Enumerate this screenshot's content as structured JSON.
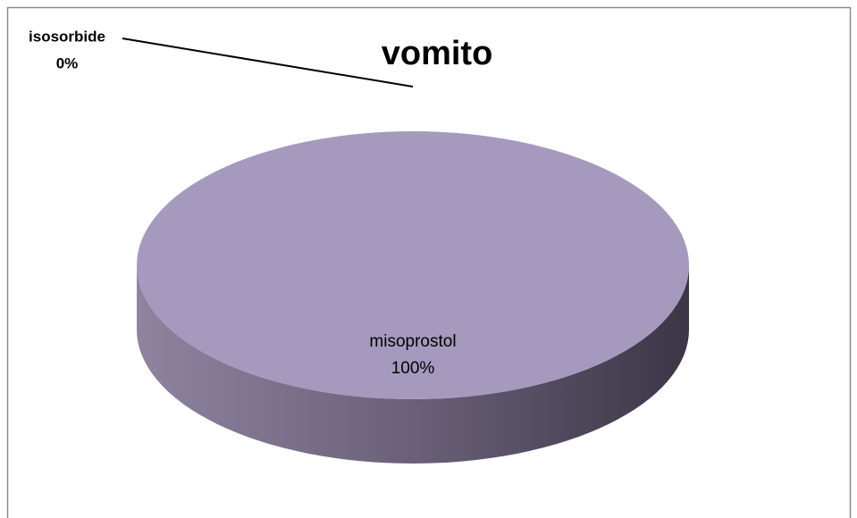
{
  "chart_data": {
    "type": "pie3d",
    "title": "vomito",
    "categories": [
      "isosorbide",
      "misoprostol"
    ],
    "values": [
      0,
      100
    ],
    "value_labels": [
      "0%",
      "100%"
    ],
    "color": "#a699be"
  }
}
